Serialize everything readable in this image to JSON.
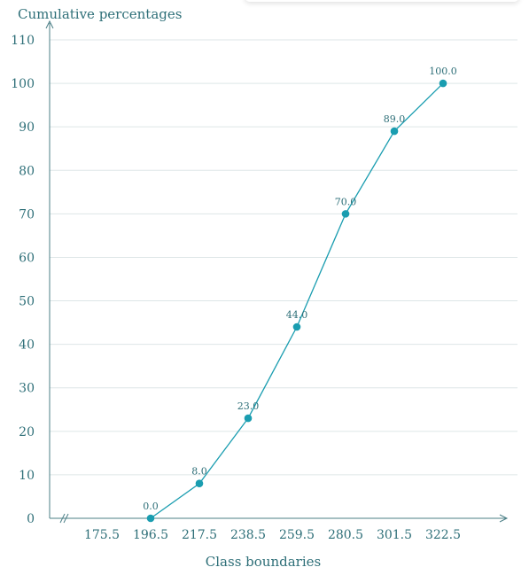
{
  "chart_data": {
    "type": "line",
    "title": "",
    "ylabel": "Cumulative percentages",
    "xlabel": "Class boundaries",
    "ylim": [
      0,
      110
    ],
    "yticks": [
      0,
      10,
      20,
      30,
      40,
      50,
      60,
      70,
      80,
      90,
      100,
      110
    ],
    "x": [
      "175.5",
      "196.5",
      "217.5",
      "238.5",
      "259.5",
      "280.5",
      "301.5",
      "322.5"
    ],
    "points": [
      {
        "x": "196.5",
        "y": 0.0,
        "label": "0.0"
      },
      {
        "x": "217.5",
        "y": 8.0,
        "label": "8.0"
      },
      {
        "x": "238.5",
        "y": 23.0,
        "label": "23.0"
      },
      {
        "x": "259.5",
        "y": 44.0,
        "label": "44.0"
      },
      {
        "x": "280.5",
        "y": 70.0,
        "label": "70.0"
      },
      {
        "x": "301.5",
        "y": 89.0,
        "label": "89.0"
      },
      {
        "x": "322.5",
        "y": 100.0,
        "label": "100.0"
      }
    ],
    "grid": true,
    "axis_break": true,
    "colors": {
      "series": "#1a9db0",
      "axis": "#4b7f86",
      "grid": "#dde6e7",
      "text": "#2e6f78"
    }
  }
}
